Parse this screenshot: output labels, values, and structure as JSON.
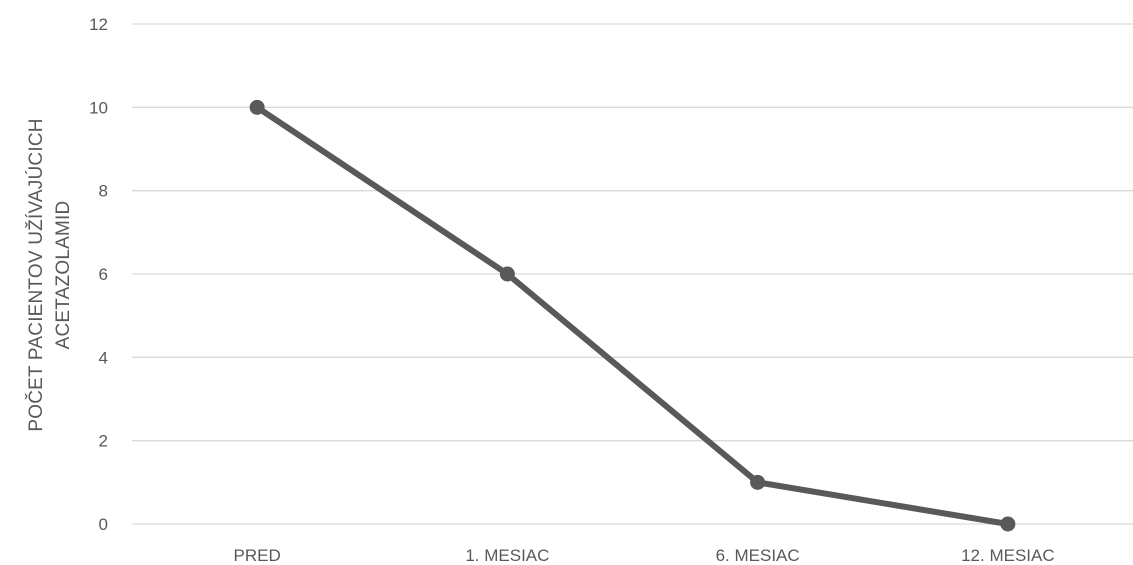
{
  "chart_data": {
    "type": "line",
    "title": "",
    "xlabel": "",
    "ylabel_lines": [
      "POČET PACIENTOV UŽÍVAJÚCICH",
      "ACETAZOLAMID"
    ],
    "categories": [
      "PRED",
      "1. MESIAC",
      "6. MESIAC",
      "12. MESIAC"
    ],
    "series": [
      {
        "values": [
          10,
          6,
          1,
          0
        ],
        "color": "#595959"
      }
    ],
    "ylim": [
      0,
      12
    ],
    "yticks": [
      0,
      2,
      4,
      6,
      8,
      10,
      12
    ],
    "grid": true,
    "legend": "none"
  }
}
